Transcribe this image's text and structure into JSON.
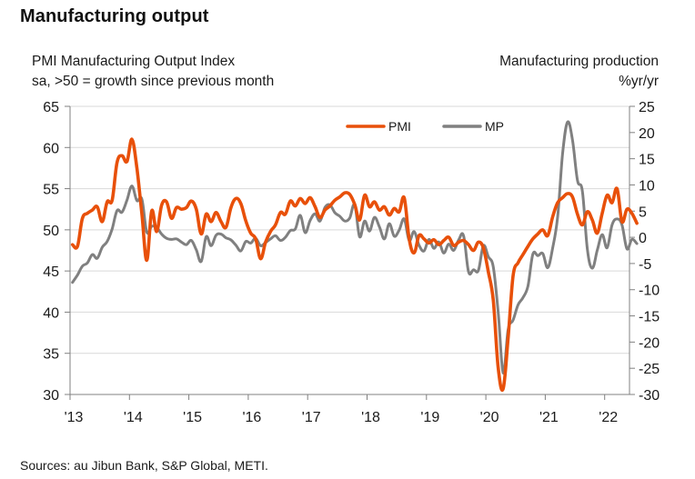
{
  "title": "Manufacturing output",
  "left_subtitle": [
    "PMI Manufacturing Output Index",
    "sa, >50 = growth since previous month"
  ],
  "right_subtitle": [
    "Manufacturing production",
    "%yr/yr"
  ],
  "source": "Sources: au Jibun Bank, S&P Global, METI.",
  "colors": {
    "pmi": "#e8500a",
    "mp": "#808080",
    "grid": "#d9d9d9",
    "axis": "#808080"
  },
  "chart_data": {
    "type": "line",
    "title": "Manufacturing output",
    "xlabel": "",
    "ylabel": "PMI Manufacturing Output Index (sa, >50 = growth since previous month)",
    "y2label": "Manufacturing production %yr/yr",
    "x_tick_labels": [
      "'13",
      "'14",
      "'15",
      "'16",
      "'17",
      "'18",
      "'19",
      "'20",
      "'21",
      "'22"
    ],
    "x_range": [
      2013.0,
      2022.42
    ],
    "ylim": [
      30,
      65
    ],
    "y_ticks": [
      30,
      35,
      40,
      45,
      50,
      55,
      60,
      65
    ],
    "y2lim": [
      -30,
      25
    ],
    "y2_ticks": [
      -30,
      -25,
      -20,
      -15,
      -10,
      -5,
      0,
      5,
      10,
      15,
      20,
      25
    ],
    "grid": true,
    "legend": {
      "placement": "top-center",
      "entries": [
        "PMI",
        "MP"
      ]
    },
    "series": [
      {
        "name": "PMI",
        "axis": "left",
        "start": "2013-01",
        "frequency": "monthly",
        "values": [
          48.2,
          48.0,
          51.4,
          52.0,
          52.4,
          52.8,
          51.0,
          53.4,
          53.6,
          58.2,
          59.0,
          58.3,
          61.0,
          57.5,
          52.0,
          46.3,
          52.3,
          49.8,
          53.0,
          53.4,
          51.4,
          52.7,
          52.5,
          52.7,
          53.5,
          52.5,
          49.5,
          51.9,
          51.0,
          52.1,
          51.0,
          50.3,
          52.7,
          53.8,
          53.2,
          51.1,
          49.6,
          48.9,
          46.5,
          48.5,
          49.8,
          50.6,
          52.1,
          51.9,
          53.5,
          52.9,
          53.8,
          53.2,
          53.9,
          52.8,
          51.5,
          52.4,
          52.9,
          53.6,
          54.0,
          54.5,
          54.3,
          53.1,
          51.2,
          54.2,
          52.8,
          53.4,
          52.4,
          52.8,
          51.8,
          52.6,
          52.2,
          53.9,
          48.9,
          47.2,
          49.3,
          48.9,
          48.4,
          48.8,
          48.2,
          48.7,
          49.1,
          48.1,
          48.5,
          48.7,
          48.2,
          47.5,
          48.5,
          47.8,
          44.9,
          41.4,
          33.2,
          30.7,
          36.9,
          44.4,
          46.0,
          47.0,
          48.0,
          48.9,
          49.5,
          50.0,
          49.3,
          51.6,
          53.3,
          53.9,
          54.4,
          54.0,
          51.9,
          50.6,
          52.2,
          51.2,
          49.6,
          52.0,
          54.2,
          53.3,
          55.0,
          51.0,
          52.5,
          52.0,
          50.8
        ]
      },
      {
        "name": "MP",
        "axis": "right",
        "start": "2013-01",
        "frequency": "monthly",
        "values": [
          -8.6,
          -7.2,
          -5.5,
          -4.9,
          -3.3,
          -4.0,
          -1.9,
          -0.8,
          1.6,
          5.1,
          4.8,
          7.1,
          9.8,
          7.0,
          7.3,
          1.0,
          2.1,
          1.9,
          0.6,
          -0.2,
          -0.4,
          -0.3,
          -0.9,
          -1.4,
          -0.6,
          -2.4,
          -4.6,
          0.1,
          -1.6,
          0.4,
          0.6,
          -0.1,
          -0.5,
          -1.5,
          -2.6,
          -0.8,
          -1.1,
          -0.2,
          -1.6,
          -1.0,
          -0.3,
          0.3,
          -0.6,
          0.0,
          1.3,
          1.6,
          4.2,
          0.9,
          3.2,
          4.5,
          3.1,
          5.7,
          6.2,
          4.7,
          4.0,
          3.1,
          3.7,
          6.2,
          0.1,
          3.1,
          1.2,
          3.8,
          2.0,
          -0.3,
          2.6,
          0.2,
          1.4,
          3.5,
          -0.6,
          1.1,
          -1.5,
          -2.6,
          -0.4,
          -2.1,
          -0.9,
          -3.0,
          -1.3,
          -2.5,
          -0.5,
          0.3,
          -6.6,
          -6.2,
          -6.3,
          -1.6,
          -3.7,
          -5.7,
          -14.4,
          -25.9,
          -17.6,
          -15.8,
          -12.9,
          -11.5,
          -9.3,
          -3.2,
          -3.5,
          -3.1,
          -5.8,
          -2.0,
          3.9,
          15.9,
          22.0,
          18.6,
          10.9,
          8.8,
          -2.3,
          -5.9,
          -2.5,
          0.5,
          -2.0,
          2.4,
          3.5,
          2.4,
          -2.2,
          -0.4,
          -1.2
        ]
      }
    ]
  }
}
